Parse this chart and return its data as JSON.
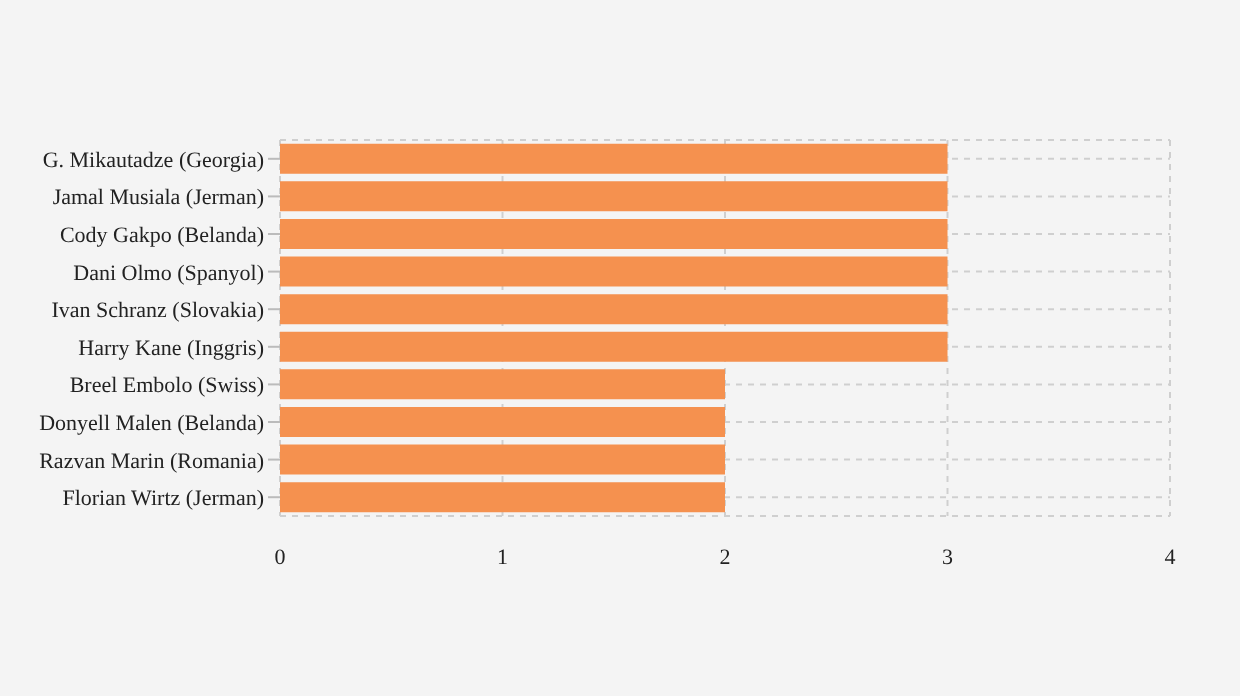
{
  "chart_data": {
    "type": "bar",
    "orientation": "horizontal",
    "categories": [
      "G. Mikautadze (Georgia)",
      "Jamal Musiala (Jerman)",
      "Cody Gakpo (Belanda)",
      "Dani Olmo (Spanyol)",
      "Ivan Schranz (Slovakia)",
      "Harry Kane (Inggris)",
      "Breel Embolo (Swiss)",
      "Donyell Malen (Belanda)",
      "Razvan Marin (Romania)",
      "Florian Wirtz (Jerman)"
    ],
    "values": [
      3,
      3,
      3,
      3,
      3,
      3,
      2,
      2,
      2,
      2
    ],
    "color": "#f5914f",
    "xlim": [
      0,
      4
    ],
    "xticks": [
      0,
      1,
      2,
      3,
      4
    ],
    "grid": true
  }
}
